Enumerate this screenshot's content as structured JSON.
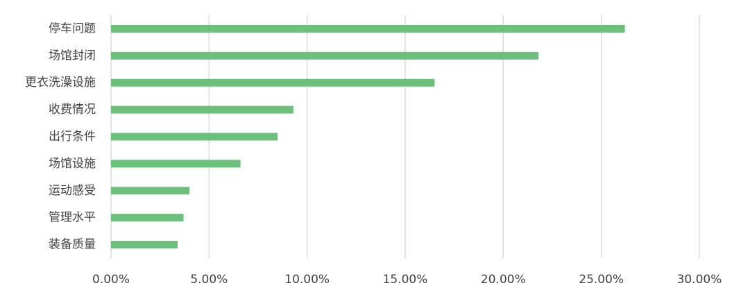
{
  "chart_data": {
    "type": "bar",
    "orientation": "horizontal",
    "categories": [
      "停车问题",
      "场馆封闭",
      "更衣洗澡设施",
      "收费情况",
      "出行条件",
      "场馆设施",
      "运动感受",
      "管理水平",
      "装备质量"
    ],
    "values": [
      26.2,
      21.8,
      16.5,
      9.3,
      8.5,
      6.6,
      4.0,
      3.7,
      3.4
    ],
    "color": "#6cc07c",
    "xlim": [
      0,
      30
    ],
    "xticks": [
      {
        "value": 0,
        "label": "0.00%"
      },
      {
        "value": 5,
        "label": "5.00%"
      },
      {
        "value": 10,
        "label": "10.00%"
      },
      {
        "value": 15,
        "label": "15.00%"
      },
      {
        "value": 20,
        "label": "20.00%"
      },
      {
        "value": 25,
        "label": "25.00%"
      },
      {
        "value": 30,
        "label": "30.00%"
      }
    ],
    "grid": true
  }
}
